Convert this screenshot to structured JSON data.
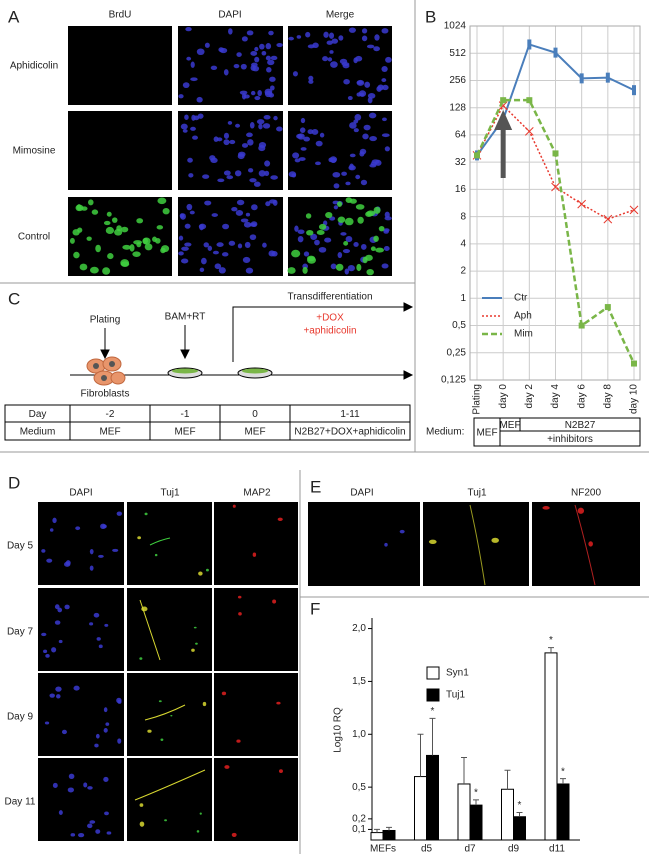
{
  "panel_a": {
    "label": "A",
    "columns": [
      "BrdU",
      "DAPI",
      "Merge"
    ],
    "rows": [
      "Aphidicolin",
      "Mimosine",
      "Control"
    ]
  },
  "chart_data": [
    {
      "type": "line",
      "label": "B",
      "categories": [
        "Plating",
        "day 0",
        "day 2",
        "day 4",
        "day 6",
        "day 8",
        "day 10"
      ],
      "series": [
        {
          "name": "Ctr",
          "color": "#4a7ebb",
          "values": [
            38,
            95,
            640,
            520,
            270,
            275,
            200
          ]
        },
        {
          "name": "Aph",
          "color": "#e8392e",
          "values": [
            38,
            135,
            70,
            17,
            11,
            7.5,
            9.5
          ]
        },
        {
          "name": "Mim",
          "color": "#7ab648",
          "values": [
            38,
            155,
            155,
            40,
            0.5,
            0.8,
            0.19
          ]
        }
      ],
      "log_base": 2,
      "ylim": [
        0.125,
        1024
      ],
      "yticks": [
        {
          "value": 0.125,
          "label": "0,125"
        },
        {
          "value": 0.25,
          "label": "0,25"
        },
        {
          "value": 0.5,
          "label": "0,5"
        },
        1,
        2,
        4,
        8,
        16,
        32,
        64,
        128,
        256,
        512,
        1024
      ],
      "grid": true,
      "legend": "bottom-left",
      "medium_title": "Medium:",
      "medium": [
        "MEF",
        "MEF",
        "N2B27",
        "+inhibitors"
      ]
    },
    {
      "type": "bar",
      "label": "F",
      "ylabel": "Log10 RQ",
      "categories": [
        "MEFs",
        "d5",
        "d7",
        "d9",
        "d11"
      ],
      "series": [
        {
          "name": "Syn1",
          "color": "#ffffff",
          "values": [
            0.07,
            0.6,
            0.53,
            0.48,
            1.77
          ],
          "errors": [
            0.03,
            0.4,
            0.25,
            0.18,
            0.05
          ],
          "significance": [
            null,
            null,
            null,
            null,
            "*"
          ]
        },
        {
          "name": "Tuj1",
          "color": "#000000",
          "values": [
            0.09,
            0.8,
            0.33,
            0.22,
            0.53
          ],
          "errors": [
            0.03,
            0.35,
            0.05,
            0.04,
            0.05
          ],
          "significance": [
            null,
            "*",
            "*",
            "*",
            "*"
          ]
        }
      ],
      "ylim": [
        0,
        2.1
      ],
      "yticks": [
        {
          "value": 0.1,
          "label": "0,1"
        },
        {
          "value": 0.2,
          "label": "0,2"
        },
        {
          "value": 0.5,
          "label": "0,5"
        },
        {
          "value": 1,
          "label": "1,0"
        },
        {
          "value": 1.5,
          "label": "1,5"
        },
        {
          "value": 2,
          "label": "2,0"
        }
      ],
      "legend": "top-left"
    }
  ],
  "panel_c": {
    "label": "C",
    "plating": "Plating",
    "cells": "Fibroblasts",
    "bam": "BAM+RT",
    "transdifferentiation": "Transdifferentiation",
    "dox": "+DOX",
    "aphidicolin": "+aphidicolin",
    "table": {
      "rows": [
        [
          "Day",
          "-2",
          "-1",
          "0",
          "1-11"
        ],
        [
          "Medium",
          "MEF",
          "MEF",
          "MEF",
          "N2B27+DOX+aphidicolin"
        ]
      ]
    }
  },
  "panel_d": {
    "label": "D",
    "columns": [
      "DAPI",
      "Tuj1",
      "MAP2"
    ],
    "rows": [
      "Day 5",
      "Day 7",
      "Day 9",
      "Day 11"
    ]
  },
  "panel_e": {
    "label": "E",
    "columns": [
      "DAPI",
      "Tuj1",
      "NF200"
    ]
  }
}
